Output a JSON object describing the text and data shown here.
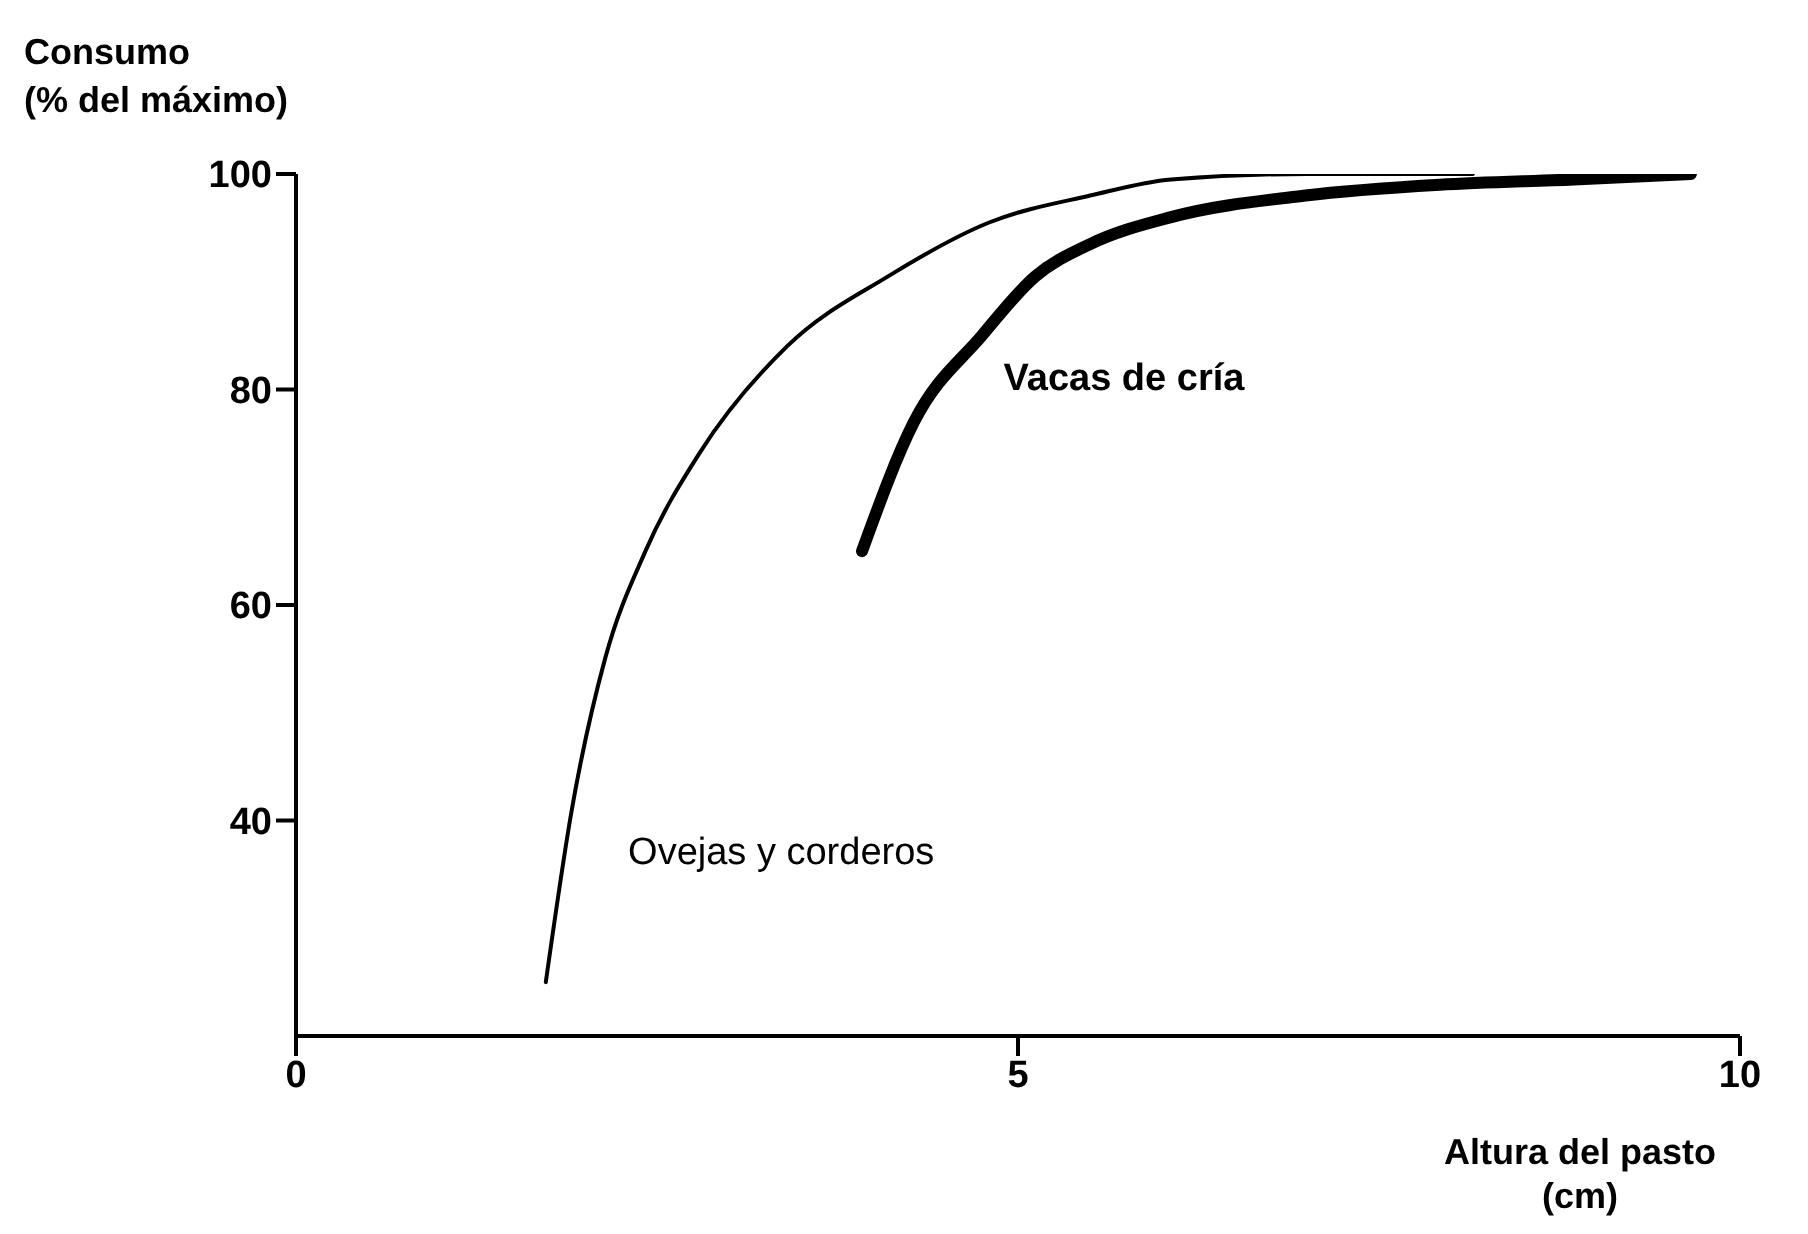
{
  "chart_data": {
    "type": "line",
    "xlabel": "Altura del pasto\n(cm)",
    "ylabel": "Consumo\n(% del máximo)",
    "xlim": [
      0,
      10
    ],
    "xticks": [
      0,
      5,
      10
    ],
    "ylim": [
      20,
      100
    ],
    "yticks": [
      40,
      60,
      80,
      100
    ],
    "marker": "none",
    "series": [
      {
        "name": "Ovejas y corderos",
        "color": "#000000",
        "x": [
          1.73,
          1.91,
          2.14,
          2.42,
          2.79,
          3.4,
          4.1,
          4.8,
          5.5,
          6.06,
          7.0,
          7.9,
          8.15
        ],
        "values": [
          25,
          41,
          55,
          65,
          74,
          84,
          90.5,
          95.5,
          98,
          99.5,
          100,
          100,
          100
        ]
      },
      {
        "name": "Vacas de cría",
        "color": "#000000",
        "x": [
          3.92,
          4.28,
          4.75,
          5.12,
          5.5,
          6.06,
          6.99,
          7.92,
          8.85,
          9.66
        ],
        "values": [
          65,
          77,
          85,
          90.5,
          93.5,
          96,
          98,
          99,
          99.5,
          100
        ]
      }
    ]
  }
}
